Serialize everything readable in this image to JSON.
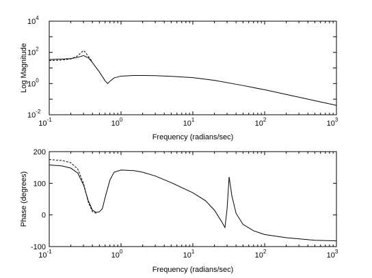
{
  "chart_data": [
    {
      "type": "line",
      "xlabel": "Frequency (radians/sec)",
      "ylabel": "Log Magnitude",
      "xscale": "log",
      "yscale": "log",
      "xlim": [
        0.1,
        1000
      ],
      "ylim": [
        0.01,
        10000
      ],
      "xticks": [
        {
          "base": "10",
          "exp": "-1"
        },
        {
          "base": "10",
          "exp": "0"
        },
        {
          "base": "10",
          "exp": "1"
        },
        {
          "base": "10",
          "exp": "2"
        },
        {
          "base": "10",
          "exp": "3"
        }
      ],
      "yticks": [
        {
          "base": "10",
          "exp": "-2"
        },
        {
          "base": "10",
          "exp": "0"
        },
        {
          "base": "10",
          "exp": "2"
        },
        {
          "base": "10",
          "exp": "4"
        }
      ],
      "grid": false,
      "series": [
        {
          "style": "solid",
          "color": "#000000",
          "x": [
            0.1,
            0.15,
            0.2,
            0.25,
            0.3,
            0.35,
            0.4,
            0.5,
            0.6,
            0.65,
            0.7,
            0.8,
            1.0,
            1.5,
            2,
            3,
            5,
            10,
            20,
            50,
            100,
            200,
            500,
            1000
          ],
          "y": [
            35,
            37,
            40,
            48,
            62,
            45,
            22,
            5.5,
            1.5,
            1.0,
            1.4,
            2.3,
            3.0,
            3.3,
            3.3,
            3.2,
            2.9,
            2.4,
            1.6,
            0.75,
            0.4,
            0.2,
            0.08,
            0.04
          ]
        },
        {
          "style": "dashed",
          "color": "#000000",
          "x": [
            0.1,
            0.15,
            0.2,
            0.25,
            0.28,
            0.3,
            0.32,
            0.35,
            0.4
          ],
          "y": [
            30,
            32,
            38,
            60,
            100,
            130,
            100,
            55,
            25
          ]
        }
      ]
    },
    {
      "type": "line",
      "xlabel": "Frequency (radians/sec)",
      "ylabel": "Phase (degrees)",
      "xscale": "log",
      "xlim": [
        0.1,
        1000
      ],
      "ylim": [
        -100,
        200
      ],
      "xticks": [
        {
          "base": "10",
          "exp": "-1"
        },
        {
          "base": "10",
          "exp": "0"
        },
        {
          "base": "10",
          "exp": "1"
        },
        {
          "base": "10",
          "exp": "2"
        },
        {
          "base": "10",
          "exp": "3"
        }
      ],
      "yticks": [
        "-100",
        "0",
        "100",
        "200"
      ],
      "grid": false,
      "series": [
        {
          "style": "solid",
          "color": "#000000",
          "x": [
            0.1,
            0.15,
            0.2,
            0.25,
            0.3,
            0.35,
            0.4,
            0.45,
            0.5,
            0.55,
            0.6,
            0.7,
            0.8,
            1.0,
            1.5,
            2,
            3,
            5,
            10,
            15,
            20,
            25,
            28,
            30,
            32,
            35,
            40,
            50,
            70,
            100,
            200,
            500,
            1000
          ],
          "y": [
            158,
            155,
            148,
            132,
            95,
            45,
            15,
            8,
            10,
            20,
            55,
            110,
            135,
            142,
            140,
            135,
            123,
            102,
            70,
            45,
            15,
            -20,
            -40,
            20,
            120,
            60,
            5,
            -30,
            -50,
            -62,
            -72,
            -80,
            -82
          ]
        },
        {
          "style": "dashed",
          "color": "#000000",
          "x": [
            0.1,
            0.15,
            0.2,
            0.25,
            0.3,
            0.35,
            0.4,
            0.45
          ],
          "y": [
            175,
            172,
            165,
            145,
            100,
            40,
            10,
            5
          ]
        }
      ]
    }
  ]
}
